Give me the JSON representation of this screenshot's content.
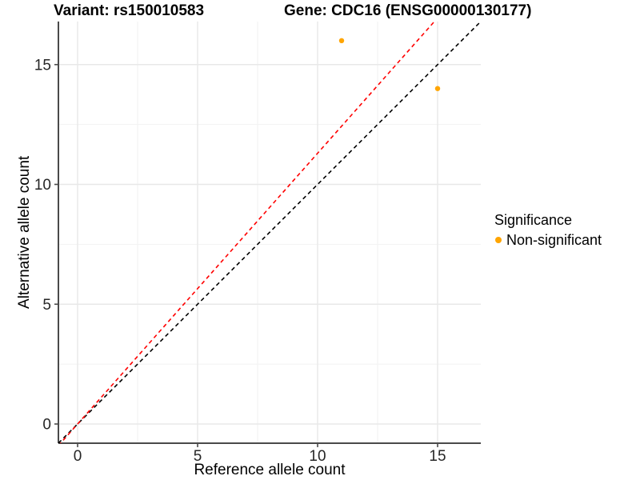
{
  "titles": {
    "variant": "Variant: rs150010583",
    "gene": "Gene: CDC16 (ENSG00000130177)"
  },
  "chart_data": {
    "type": "scatter",
    "title": "Variant: rs150010583  Gene: CDC16 (ENSG00000130177)",
    "xlabel": "Reference allele count",
    "ylabel": "Alternative allele count",
    "xlim": [
      -0.8,
      16.8
    ],
    "ylim": [
      -0.8,
      16.8
    ],
    "x_major_ticks": [
      0,
      5,
      10,
      15
    ],
    "y_major_ticks": [
      0,
      5,
      10,
      15
    ],
    "x_minor_ticks": [
      2.5,
      7.5,
      12.5
    ],
    "y_minor_ticks": [
      2.5,
      7.5,
      12.5
    ],
    "grid": "major+minor",
    "legend_position": "right",
    "series": [
      {
        "name": "Non-significant",
        "color": "#FFA500",
        "points": [
          {
            "x": 11,
            "y": 16
          },
          {
            "x": 15,
            "y": 14
          }
        ]
      }
    ],
    "reference_lines": [
      {
        "name": "identity-line",
        "slope": 1.0,
        "intercept": 0,
        "color": "#000000",
        "style": "dashed"
      },
      {
        "name": "expected-ratio-line",
        "slope": 1.13,
        "intercept": 0,
        "color": "#FF0000",
        "style": "dashed"
      }
    ],
    "legend": {
      "title": "Significance",
      "items": [
        {
          "label": "Non-significant",
          "color": "#FFA500"
        }
      ]
    },
    "colors": {
      "background": "#FFFFFF",
      "grid_major": "#E8E8E8",
      "grid_minor": "#F2F2F2",
      "axis_line": "#4A4A4A",
      "tick_text": "#262626",
      "title_text": "#000000"
    }
  }
}
